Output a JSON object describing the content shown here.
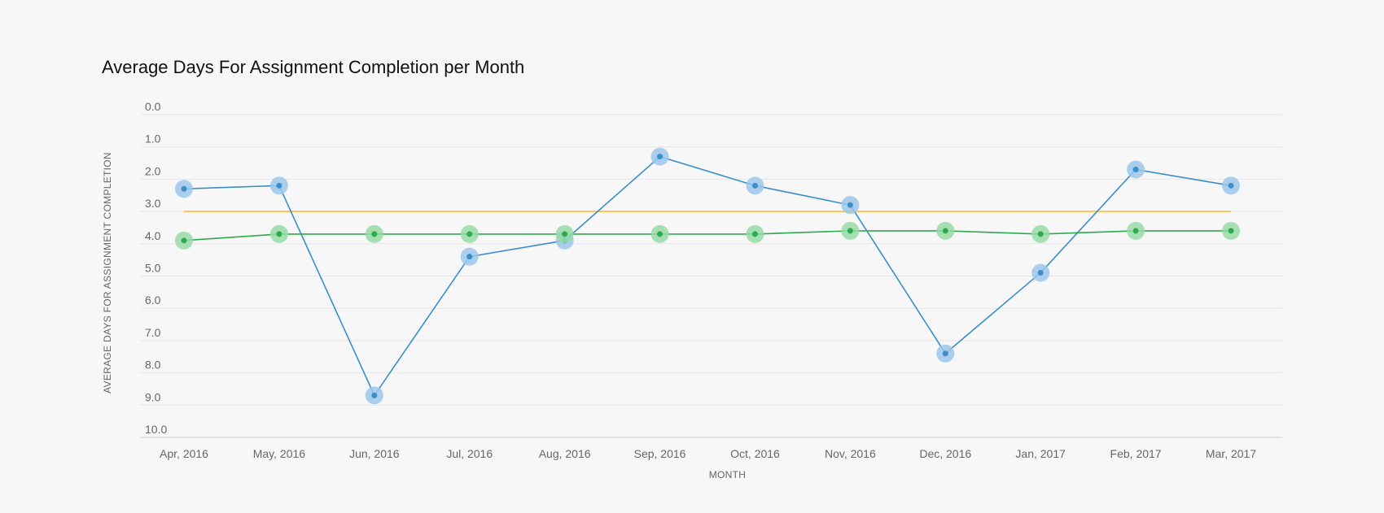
{
  "chart_data": {
    "type": "line",
    "title": "Average Days For Assignment Completion per Month",
    "xlabel": "MONTH",
    "ylabel": "AVERAGE DAYS FOR ASSIGNMENT COMPLETION",
    "y_reversed": true,
    "ylim": [
      0,
      10
    ],
    "yticks": [
      "0.0",
      "1.0",
      "2.0",
      "3.0",
      "4.0",
      "5.0",
      "6.0",
      "7.0",
      "8.0",
      "9.0",
      "10.0"
    ],
    "grid": true,
    "categories": [
      "Apr, 2016",
      "May, 2016",
      "Jun, 2016",
      "Jul, 2016",
      "Aug, 2016",
      "Sep, 2016",
      "Oct, 2016",
      "Nov, 2016",
      "Dec, 2016",
      "Jan, 2017",
      "Feb, 2017",
      "Mar, 2017"
    ],
    "series": [
      {
        "color": "#3a8fc9",
        "halo": "#9cc7ea",
        "values": [
          2.3,
          2.2,
          8.7,
          4.4,
          3.9,
          1.3,
          2.2,
          2.8,
          7.4,
          4.9,
          1.7,
          2.2
        ]
      },
      {
        "color": "#2eaa4f",
        "halo": "#97dba6",
        "values": [
          3.9,
          3.7,
          3.7,
          3.7,
          3.7,
          3.7,
          3.7,
          3.6,
          3.6,
          3.7,
          3.6,
          3.6
        ]
      }
    ],
    "reference_lines": [
      {
        "color": "#f5c45a",
        "value": 3.0
      }
    ]
  }
}
